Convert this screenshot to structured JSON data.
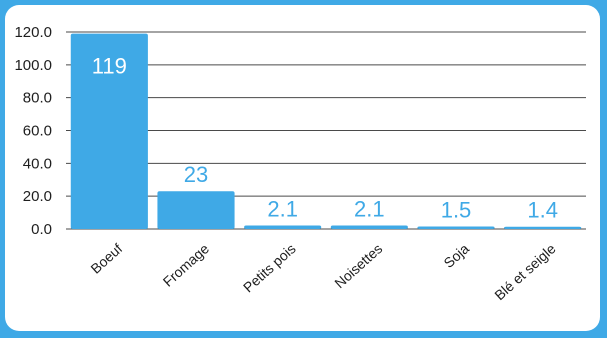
{
  "colors": {
    "frame": "#3fa9e6",
    "bar": "#3fa9e6",
    "card": "#ffffff",
    "grid": "#4a4a4a"
  },
  "chart_data": {
    "type": "bar",
    "categories": [
      "Boeuf",
      "Fromage",
      "Petits pois",
      "Noisettes",
      "Soja",
      "Blé et seigle"
    ],
    "values": [
      119,
      23,
      2.1,
      2.1,
      1.5,
      1.4
    ],
    "data_labels": [
      "119",
      "23",
      "2.1",
      "2.1",
      "1.5",
      "1.4"
    ],
    "y_ticks": [
      "0.0",
      "20.0",
      "40.0",
      "60.0",
      "80.0",
      "100.0",
      "120.0"
    ],
    "ylim": [
      0,
      120
    ],
    "grid": true,
    "legend": "none",
    "title": "",
    "xlabel": "",
    "ylabel": ""
  }
}
